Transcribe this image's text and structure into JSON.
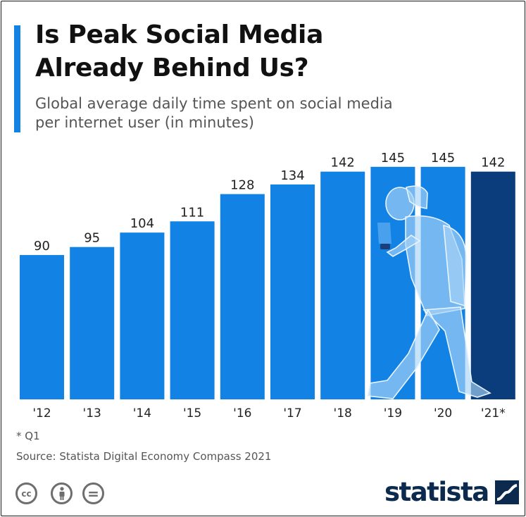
{
  "header": {
    "title_line1": "Is Peak Social Media",
    "title_line2": "Already Behind Us?",
    "subtitle_line1": "Global average daily time spent on social media",
    "subtitle_line2": "per internet user (in minutes)"
  },
  "chart_data": {
    "type": "bar",
    "title": "Is Peak Social Media Already Behind Us?",
    "subtitle": "Global average daily time spent on social media per internet user (in minutes)",
    "categories": [
      "'12",
      "'13",
      "'14",
      "'15",
      "'16",
      "'17",
      "'18",
      "'19",
      "'20",
      "'21*"
    ],
    "values": [
      90,
      95,
      104,
      111,
      128,
      134,
      142,
      145,
      145,
      142
    ],
    "value_labels": [
      "90",
      "95",
      "104",
      "111",
      "128",
      "134",
      "142",
      "145",
      "145",
      "142"
    ],
    "ylim": [
      0,
      150
    ],
    "grid": false,
    "legend": "none",
    "colors": {
      "bar": "#1282e5",
      "highlight_bar": "#0b3c7c",
      "person_overlay": "#8fc6f3"
    }
  },
  "footer": {
    "footnote": "* Q1",
    "source": "Source: Statista Digital Economy Compass 2021"
  },
  "license_icons": [
    "cc-icon",
    "person-icon",
    "equals-icon"
  ],
  "license_labels": {
    "cc": "cc",
    "nd": "="
  },
  "brand": {
    "name": "statista",
    "color": "#0c2a4e"
  }
}
